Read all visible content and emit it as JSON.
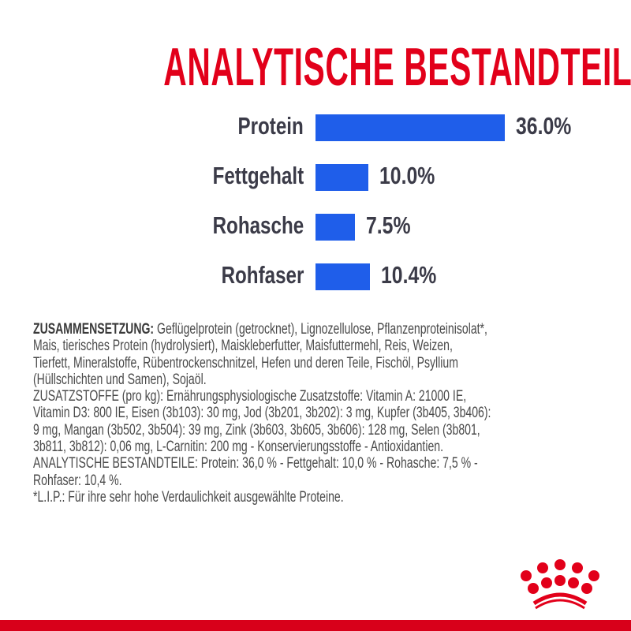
{
  "title": "ANALYTISCHE BESTANDTEILE",
  "chart_data": {
    "type": "bar",
    "orientation": "horizontal",
    "title": "ANALYTISCHE BESTANDTEILE",
    "categories": [
      "Protein",
      "Fettgehalt",
      "Rohasche",
      "Rohfaser"
    ],
    "values": [
      36.0,
      10.0,
      7.5,
      10.4
    ],
    "value_labels": [
      "36.0%",
      "10.0%",
      "7.5%",
      "10.4%"
    ],
    "unit": "%",
    "bar_color": "#1f5eea",
    "grid": false
  },
  "composition": {
    "heading": "ZUSAMMENSETZUNG:",
    "lines": [
      " Geflügelprotein (getrocknet), Lignozellulose, Pflanzenproteinisolat*,",
      "Mais, tierisches Protein (hydrolysiert), Maiskleberfutter, Maisfuttermehl, Reis, Weizen,",
      "Tierfett, Mineralstoffe, Rübentrockenschnitzel, Hefen und deren Teile, Fischöl, Psyllium",
      "(Hüllschichten und Samen), Sojaöl.",
      "ZUSATZSTOFFE (pro kg): Ernährungsphysiologische Zusatzstoffe: Vitamin A: 21000 IE,",
      "Vitamin D3: 800 IE, Eisen (3b103): 30 mg, Jod (3b201, 3b202): 3 mg, Kupfer (3b405, 3b406):",
      "9 mg, Mangan (3b502, 3b504): 39 mg, Zink (3b603, 3b605, 3b606): 128 mg, Selen (3b801,",
      "3b811, 3b812): 0,06 mg, L-Carnitin: 200 mg - Konservierungsstoffe - Antioxidantien.",
      "ANALYTISCHE BESTANDTEILE: Protein: 36,0 % - Fettgehalt: 10,0 % - Rohasche: 7,5 % -",
      "Rohfaser: 10,4 %.",
      "*L.I.P.: Für ihre sehr hohe Verdaulichkeit ausgewählte Proteine."
    ]
  },
  "colors": {
    "brand_red": "#e2001a",
    "bar_blue": "#1f5eea",
    "text": "#4a4a4a"
  },
  "logo": {
    "name": "crown-logo"
  }
}
